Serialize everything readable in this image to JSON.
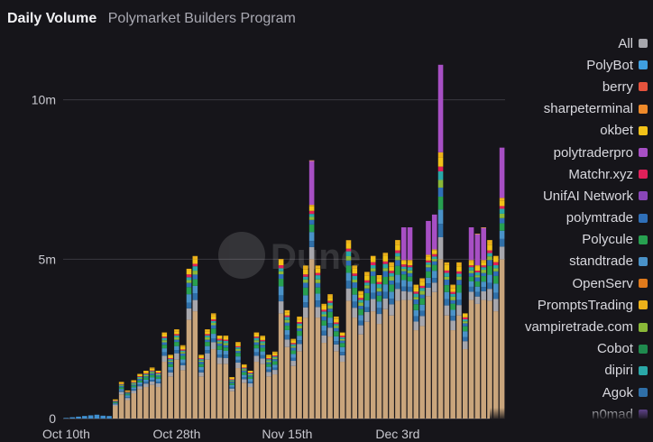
{
  "header": {
    "title": "Daily Volume",
    "subtitle": "Polymarket Builders Program"
  },
  "watermark": {
    "text": "Dune"
  },
  "colors": {
    "background": "#16151a",
    "grid": "#3a3940",
    "axis_text": "#c9c9d0"
  },
  "legend": {
    "items": [
      {
        "label": "All",
        "color": "#a6a6ac"
      },
      {
        "label": "PolyBot",
        "color": "#3f9fe0"
      },
      {
        "label": "berry",
        "color": "#e5533d"
      },
      {
        "label": "sharpeterminal",
        "color": "#ee8a2a"
      },
      {
        "label": "okbet",
        "color": "#f2c218"
      },
      {
        "label": "polytraderpro",
        "color": "#a74fc4"
      },
      {
        "label": "Matchr.xyz",
        "color": "#e0205a"
      },
      {
        "label": "UnifAI Network",
        "color": "#8a46b8"
      },
      {
        "label": "polymtrade",
        "color": "#2f6fb8"
      },
      {
        "label": "Polycule",
        "color": "#27a050"
      },
      {
        "label": "standtrade",
        "color": "#4a92c8"
      },
      {
        "label": "OpenServ",
        "color": "#e07a1c"
      },
      {
        "label": "PromptsTrading",
        "color": "#eeb21a"
      },
      {
        "label": "vampiretrade.com",
        "color": "#8ab838"
      },
      {
        "label": "Cobot",
        "color": "#1f8a4e"
      },
      {
        "label": "dipiri",
        "color": "#2aa8a8"
      },
      {
        "label": "Agok",
        "color": "#2f6fa8"
      },
      {
        "label": "n0mad",
        "color": "#6b4a9c"
      }
    ]
  },
  "chart_data": {
    "type": "bar",
    "stacked": true,
    "title": "Daily Volume",
    "subtitle": "Polymarket Builders Program",
    "xlabel": "",
    "ylabel": "",
    "ylim": [
      0,
      12000000
    ],
    "yticks": [
      0,
      5000000,
      10000000
    ],
    "ytick_labels": [
      "0",
      "5m",
      "10m"
    ],
    "x_tick_labels": [
      {
        "label": "Oct 10th",
        "index": 0
      },
      {
        "label": "Oct 28th",
        "index": 18
      },
      {
        "label": "Nov 15th",
        "index": 36
      },
      {
        "label": "Dec 3rd",
        "index": 54
      }
    ],
    "grid": true,
    "legend_position": "right",
    "x": [
      "Oct 10",
      "Oct 11",
      "Oct 12",
      "Oct 13",
      "Oct 14",
      "Oct 15",
      "Oct 16",
      "Oct 17",
      "Oct 18",
      "Oct 19",
      "Oct 20",
      "Oct 21",
      "Oct 22",
      "Oct 23",
      "Oct 24",
      "Oct 25",
      "Oct 26",
      "Oct 27",
      "Oct 28",
      "Oct 29",
      "Oct 30",
      "Oct 31",
      "Nov 1",
      "Nov 2",
      "Nov 3",
      "Nov 4",
      "Nov 5",
      "Nov 6",
      "Nov 7",
      "Nov 8",
      "Nov 9",
      "Nov 10",
      "Nov 11",
      "Nov 12",
      "Nov 13",
      "Nov 14",
      "Nov 15",
      "Nov 16",
      "Nov 17",
      "Nov 18",
      "Nov 19",
      "Nov 20",
      "Nov 21",
      "Nov 22",
      "Nov 23",
      "Nov 24",
      "Nov 25",
      "Nov 26",
      "Nov 27",
      "Nov 28",
      "Nov 29",
      "Nov 30",
      "Dec 1",
      "Dec 2",
      "Dec 3",
      "Dec 4",
      "Dec 5",
      "Dec 6",
      "Dec 7",
      "Dec 8",
      "Dec 9",
      "Dec 10",
      "Dec 11",
      "Dec 12",
      "Dec 13",
      "Dec 14",
      "Dec 15",
      "Dec 16",
      "Dec 17",
      "Dec 18",
      "Dec 19",
      "Dec 20"
    ],
    "totals": [
      20000,
      40000,
      60000,
      80000,
      100000,
      120000,
      90000,
      80000,
      600000,
      1150000,
      880000,
      1200000,
      1400000,
      1500000,
      1600000,
      1500000,
      2700000,
      2000000,
      2800000,
      2300000,
      4700000,
      5100000,
      2000000,
      2800000,
      3300000,
      2600000,
      2600000,
      1300000,
      2400000,
      1700000,
      1500000,
      2700000,
      2600000,
      2000000,
      2100000,
      5000000,
      3400000,
      2500000,
      3200000,
      4800000,
      8100000,
      4800000,
      3600000,
      3900000,
      3200000,
      2700000,
      5600000,
      4800000,
      4000000,
      4600000,
      5100000,
      4500000,
      5200000,
      4900000,
      5600000,
      6000000,
      6000000,
      4200000,
      4400000,
      6200000,
      6400000,
      11100000,
      4900000,
      4200000,
      4900000,
      3300000,
      6000000,
      5800000,
      6000000,
      5600000,
      5100000,
      8500000
    ]
  }
}
